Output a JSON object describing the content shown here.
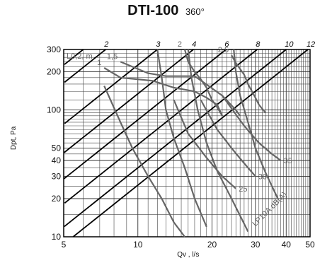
{
  "title": {
    "main": "DTI-100",
    "sub": "360°"
  },
  "chart_data": {
    "type": "line",
    "xscale": "log",
    "yscale": "log",
    "xlim": [
      5,
      50
    ],
    "ylim": [
      10,
      300
    ],
    "xlabel": "Qv , l/s",
    "ylabel": "Dpt, Pa",
    "grid": true,
    "x_ticks": [
      5,
      10,
      20,
      30,
      40,
      50
    ],
    "y_ticks": [
      10,
      20,
      30,
      40,
      50,
      100,
      200,
      300
    ],
    "series_groups": [
      {
        "label": "L0,2, m",
        "color": "#666666",
        "series": [
          {
            "name": "1",
            "points": [
              [
                7.3,
                215
              ],
              [
                8.5,
                180
              ],
              [
                11.5,
                170
              ],
              [
                14,
                150
              ],
              [
                17,
                140
              ],
              [
                19,
                125
              ],
              [
                21,
                110
              ],
              [
                22,
                90
              ]
            ]
          },
          {
            "name": "1,5",
            "points": [
              [
                8.5,
                240
              ],
              [
                11,
                195
              ],
              [
                13,
                185
              ],
              [
                17,
                185
              ],
              [
                18.5,
                165
              ],
              [
                22,
                130
              ],
              [
                25,
                100
              ],
              [
                26,
                90
              ]
            ]
          },
          {
            "name": "2",
            "points": [
              [
                15.5,
                300
              ],
              [
                16,
                240
              ],
              [
                17,
                200
              ],
              [
                18,
                175
              ],
              [
                19,
                150
              ],
              [
                20,
                120
              ],
              [
                21,
                105
              ],
              [
                22,
                90
              ]
            ]
          },
          {
            "name": "2,5",
            "points": [
              [
                24,
                270
              ],
              [
                25,
                235
              ],
              [
                27,
                190
              ],
              [
                28,
                160
              ],
              [
                30,
                125
              ],
              [
                31,
                110
              ],
              [
                33,
                95
              ]
            ]
          }
        ]
      },
      {
        "label": "Dpt, Pa",
        "color": "#666666",
        "series": [
          {
            "name": "",
            "points": [
              [
                7.3,
                155
              ],
              [
                8.5,
                80
              ],
              [
                9.5,
                50
              ],
              [
                11,
                30
              ],
              [
                12.5,
                20
              ],
              [
                14,
                13
              ],
              [
                15.5,
                10
              ]
            ]
          },
          {
            "name": "",
            "points": [
              [
                12,
                300
              ],
              [
                12.5,
                180
              ],
              [
                13,
                100
              ],
              [
                14,
                60
              ],
              [
                15.5,
                35
              ],
              [
                17,
                20
              ],
              [
                19,
                12
              ]
            ]
          },
          {
            "name": "",
            "points": [
              [
                16,
                300
              ],
              [
                16.5,
                180
              ],
              [
                17.5,
                100
              ],
              [
                19,
                55
              ],
              [
                21,
                33
              ],
              [
                24,
                20
              ],
              [
                28,
                11
              ]
            ]
          },
          {
            "name": "",
            "points": [
              [
                24.5,
                300
              ],
              [
                25,
                200
              ],
              [
                26,
                130
              ],
              [
                28,
                80
              ],
              [
                30,
                50
              ],
              [
                33,
                32
              ],
              [
                37,
                20
              ]
            ]
          }
        ]
      },
      {
        "label": "LP10A dB(A)",
        "color": "#666666",
        "series": [
          {
            "name": "25",
            "points": [
              [
                14,
                120
              ],
              [
                16,
                65
              ],
              [
                19,
                42
              ],
              [
                22,
                30
              ],
              [
                25,
                24
              ]
            ]
          },
          {
            "name": "30",
            "points": [
              [
                18,
                120
              ],
              [
                21,
                70
              ],
              [
                24,
                50
              ],
              [
                27,
                38
              ],
              [
                30,
                30
              ]
            ]
          },
          {
            "name": "35",
            "points": [
              [
                22,
                130
              ],
              [
                27,
                75
              ],
              [
                31,
                55
              ],
              [
                35,
                45
              ],
              [
                38,
                40
              ]
            ]
          }
        ]
      }
    ],
    "throw_lines": {
      "color": "#000000",
      "lines": [
        {
          "name": "2",
          "x_at_y300": 7.4
        },
        {
          "name": "3",
          "x_at_y300": 12.0
        },
        {
          "name": "4",
          "x_at_y300": 16.8
        },
        {
          "name": "6",
          "x_at_y300": 22.8
        },
        {
          "name": "8",
          "x_at_y300": 30.5
        },
        {
          "name": "10",
          "x_at_y300": 40.0
        },
        {
          "name": "12",
          "x_at_y300": 49.0
        }
      ],
      "extra_lines_x_at_y300": [
        5.0,
        6.0
      ]
    },
    "labels": {
      "Lm": "L0,2, m",
      "LpA": "LP10A dB(A)"
    }
  }
}
